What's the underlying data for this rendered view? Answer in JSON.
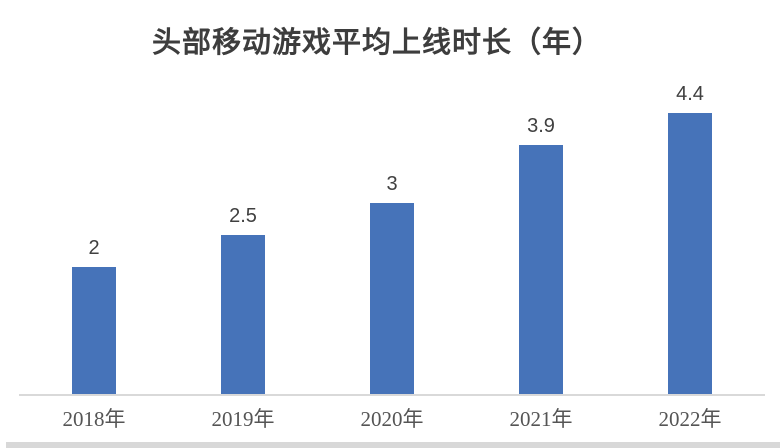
{
  "page": {
    "background_color": "#ffffff",
    "bottom_strip_color": "#d8d8d8"
  },
  "chart_data": {
    "type": "bar",
    "title": "头部移动游戏平均上线时长（年）",
    "categories": [
      "2018年",
      "2019年",
      "2020年",
      "2021年",
      "2022年"
    ],
    "values": [
      2,
      2.5,
      3,
      3.9,
      4.4
    ],
    "data_labels": [
      "2",
      "2.5",
      "3",
      "3.9",
      "4.4"
    ],
    "xlabel": "",
    "ylabel": "",
    "ylim": [
      0,
      4.7
    ],
    "grid": "off",
    "legend": "none",
    "bar_color": "#4673b9",
    "axis_line_color": "#d9d9d9",
    "title_color": "#3d3d3d",
    "data_label_color": "#404040",
    "category_label_color": "#555555"
  }
}
